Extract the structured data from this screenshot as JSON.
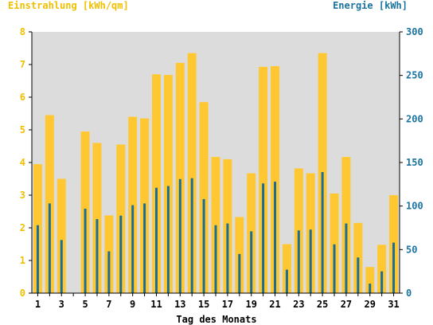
{
  "labels": {
    "left_axis_title": "Einstrahlung [kWh/qm]",
    "right_axis_title": "Energie [kWh]",
    "x_axis_title": "Tag des Monats"
  },
  "colors": {
    "radiation_bar": "#ffc832",
    "energy_bar": "#1a6e96",
    "plot_background": "#dcdcdc",
    "left_axis_text": "#f0c000",
    "right_axis_text": "#1a73a0",
    "axis_line": "#000000"
  },
  "chart_data": {
    "type": "bar",
    "categories": [
      1,
      2,
      3,
      4,
      5,
      6,
      7,
      8,
      9,
      10,
      11,
      12,
      13,
      14,
      15,
      16,
      17,
      18,
      19,
      20,
      21,
      22,
      23,
      24,
      25,
      26,
      27,
      28,
      29,
      30,
      31
    ],
    "x_tick_labels": [
      1,
      3,
      5,
      7,
      9,
      11,
      13,
      15,
      17,
      19,
      21,
      23,
      25,
      27,
      29,
      31
    ],
    "xlabel": "Tag des Monats",
    "series": [
      {
        "name": "Einstrahlung [kWh/qm]",
        "axis": "left",
        "values": [
          3.95,
          5.45,
          3.5,
          0,
          4.95,
          4.6,
          2.38,
          4.55,
          5.4,
          5.35,
          6.7,
          6.68,
          7.05,
          7.35,
          5.85,
          4.17,
          4.1,
          2.33,
          3.67,
          6.93,
          6.95,
          1.5,
          3.82,
          3.67,
          7.35,
          3.05,
          4.17,
          2.15,
          0.8,
          1.48,
          3.0
        ]
      },
      {
        "name": "Energie [kWh]",
        "axis": "right",
        "values": [
          78,
          103,
          61,
          0,
          97,
          85,
          48,
          89,
          101,
          103,
          121,
          123,
          131,
          132,
          108,
          78,
          80,
          45,
          71,
          126,
          128,
          27,
          72,
          73,
          139,
          56,
          80,
          41,
          11,
          25,
          58
        ]
      }
    ],
    "y_left": {
      "label": "Einstrahlung [kWh/qm]",
      "range": [
        0,
        8
      ],
      "ticks": [
        0,
        1,
        2,
        3,
        4,
        5,
        6,
        7,
        8
      ]
    },
    "y_right": {
      "label": "Energie [kWh]",
      "range": [
        0,
        300
      ],
      "ticks": [
        0,
        50,
        100,
        150,
        200,
        250,
        300
      ]
    },
    "grid": false,
    "legend": "none"
  }
}
